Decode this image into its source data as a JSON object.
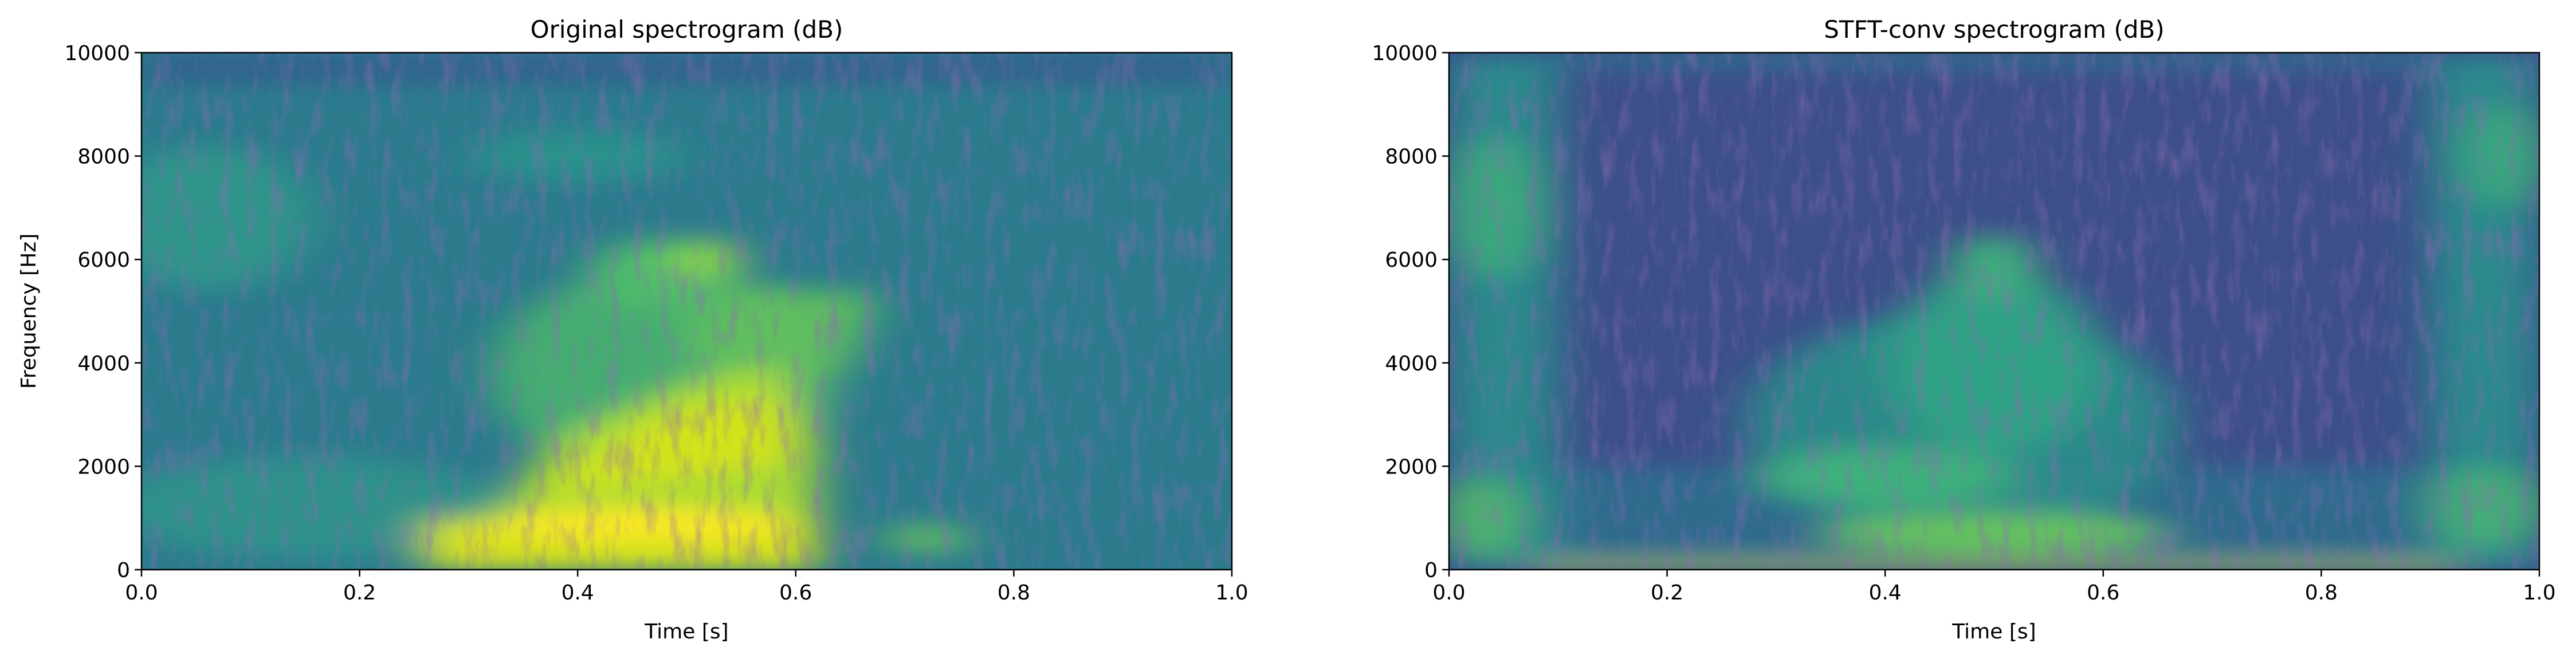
{
  "chart_data": [
    {
      "type": "spectrogram",
      "title": "Original spectrogram (dB)",
      "xlabel": "Time [s]",
      "ylabel": "Frequency [Hz]",
      "xlim": [
        0,
        1
      ],
      "ylim": [
        0,
        10000
      ],
      "xticks": [
        {
          "value": 0,
          "label": "0.0"
        },
        0.2,
        0.4,
        0.6,
        0.8,
        {
          "value": 1,
          "label": "1.0"
        }
      ],
      "yticks": [
        0,
        2000,
        4000,
        6000,
        8000,
        10000
      ]
    },
    {
      "type": "spectrogram",
      "title": "STFT-conv spectrogram (dB)",
      "xlabel": "Time [s]",
      "xlim": [
        0,
        1
      ],
      "ylim": [
        0,
        10000
      ],
      "xticks": [
        {
          "value": 0,
          "label": "0.0"
        },
        0.2,
        0.4,
        0.6,
        0.8,
        {
          "value": 1,
          "label": "1.0"
        }
      ],
      "yticks": [
        0,
        2000,
        4000,
        6000,
        8000,
        10000
      ]
    }
  ]
}
